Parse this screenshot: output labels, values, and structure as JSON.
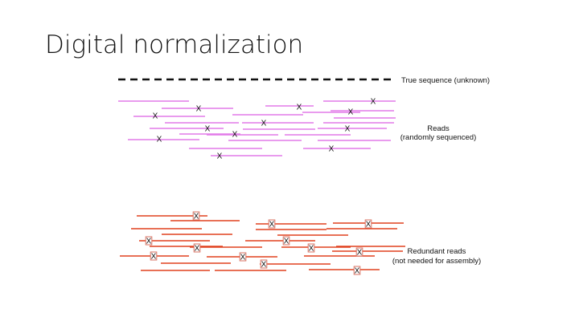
{
  "slide": {
    "title": "Digital normalization"
  },
  "legend": {
    "true_sequence": "True sequence (unknown)",
    "reads_line1": "Reads",
    "reads_line2": "(randomly sequenced)",
    "redundant_line1": "Redundant reads",
    "redundant_line2": "(not needed for assembly)"
  },
  "error_mark": "X",
  "colors": {
    "true_sequence": "#111111",
    "reads": "#e27ae8",
    "redundant": "#e0401f",
    "error_box": "#d97060"
  }
}
